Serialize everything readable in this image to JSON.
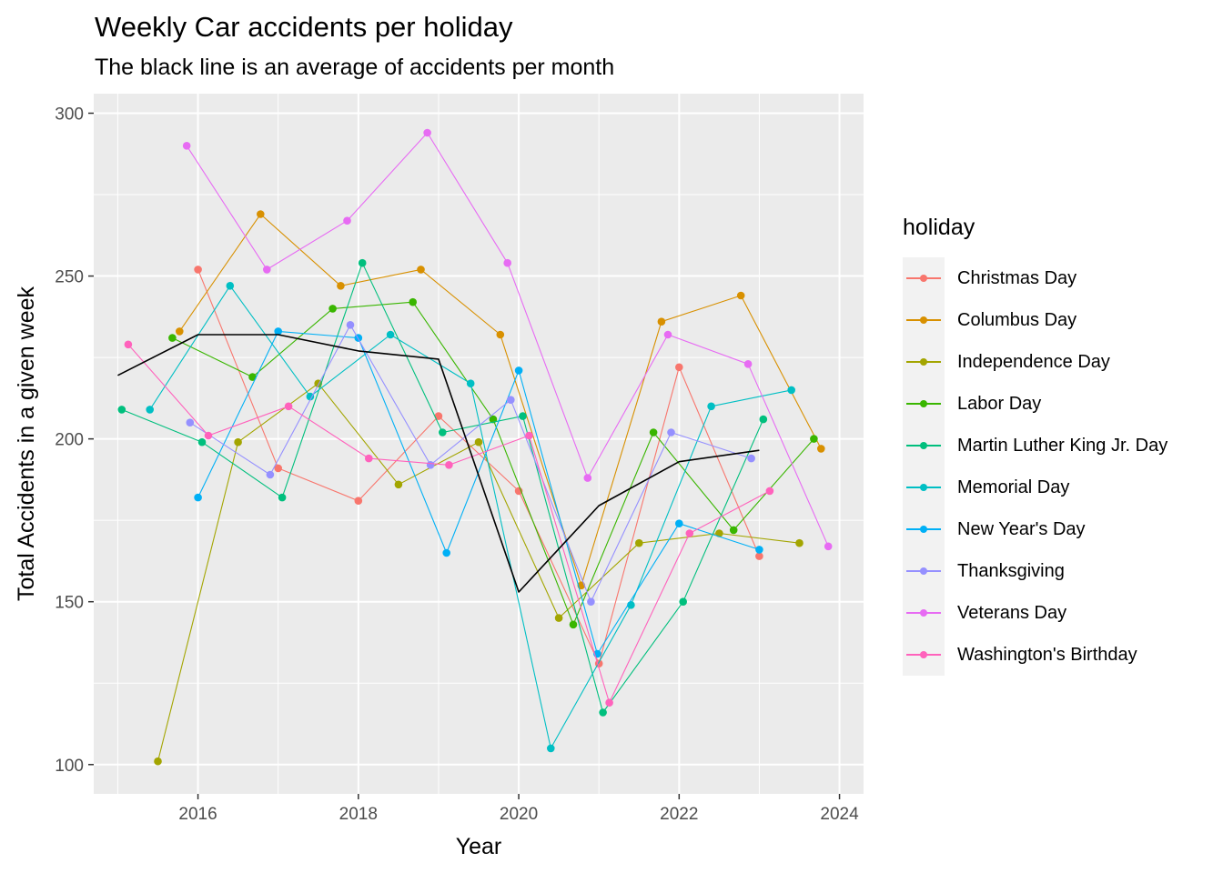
{
  "chart_data": {
    "type": "line",
    "title": "Weekly Car accidents per holiday",
    "subtitle": "The black line is an average of accidents per month",
    "xlabel": "Year",
    "ylabel": "Total Accidents in a given week",
    "xlim": [
      2014.7,
      2024.3
    ],
    "ylim": [
      91,
      306
    ],
    "xticks": [
      2016,
      2018,
      2020,
      2022,
      2024
    ],
    "yticks": [
      100,
      150,
      200,
      250,
      300
    ],
    "grid": true,
    "legend_title": "holiday",
    "legend_position": "right",
    "series": [
      {
        "name": "Christmas Day",
        "color": "#F8766D",
        "points": [
          [
            2016.0,
            252
          ],
          [
            2017.0,
            191
          ],
          [
            2018.0,
            181
          ],
          [
            2019.0,
            207
          ],
          [
            2020.0,
            184
          ],
          [
            2021.0,
            131
          ],
          [
            2022.0,
            222
          ],
          [
            2023.0,
            164
          ]
        ]
      },
      {
        "name": "Columbus Day",
        "color": "#D89000",
        "points": [
          [
            2015.77,
            233
          ],
          [
            2016.78,
            269
          ],
          [
            2017.78,
            247
          ],
          [
            2018.78,
            252
          ],
          [
            2019.77,
            232
          ],
          [
            2020.78,
            155
          ],
          [
            2021.78,
            236
          ],
          [
            2022.77,
            244
          ],
          [
            2023.77,
            197
          ]
        ]
      },
      {
        "name": "Independence Day",
        "color": "#A3A500",
        "points": [
          [
            2015.5,
            101
          ],
          [
            2016.5,
            199
          ],
          [
            2017.5,
            217
          ],
          [
            2018.5,
            186
          ],
          [
            2019.5,
            199
          ],
          [
            2020.5,
            145
          ],
          [
            2021.5,
            168
          ],
          [
            2022.5,
            171
          ],
          [
            2023.5,
            168
          ]
        ]
      },
      {
        "name": "Labor Day",
        "color": "#39B600",
        "points": [
          [
            2015.68,
            231
          ],
          [
            2016.68,
            219
          ],
          [
            2017.68,
            240
          ],
          [
            2018.68,
            242
          ],
          [
            2019.68,
            206
          ],
          [
            2020.68,
            143
          ],
          [
            2021.68,
            202
          ],
          [
            2022.68,
            172
          ],
          [
            2023.68,
            200
          ]
        ]
      },
      {
        "name": "Martin Luther King Jr. Day",
        "color": "#00BF7D",
        "points": [
          [
            2015.05,
            209
          ],
          [
            2016.05,
            199
          ],
          [
            2017.05,
            182
          ],
          [
            2018.05,
            254
          ],
          [
            2019.05,
            202
          ],
          [
            2020.05,
            207
          ],
          [
            2021.05,
            116
          ],
          [
            2022.05,
            150
          ],
          [
            2023.05,
            206
          ]
        ]
      },
      {
        "name": "Memorial Day",
        "color": "#00BFC4",
        "points": [
          [
            2015.4,
            209
          ],
          [
            2016.4,
            247
          ],
          [
            2017.4,
            213
          ],
          [
            2018.4,
            232
          ],
          [
            2019.4,
            217
          ],
          [
            2020.4,
            105
          ],
          [
            2021.4,
            149
          ],
          [
            2022.4,
            210
          ],
          [
            2023.4,
            215
          ]
        ]
      },
      {
        "name": "New Year's Day",
        "color": "#00B0F6",
        "points": [
          [
            2016.0,
            182
          ],
          [
            2017.0,
            233
          ],
          [
            2018.0,
            231
          ],
          [
            2019.1,
            165
          ],
          [
            2020.0,
            221
          ],
          [
            2020.98,
            134
          ],
          [
            2022.0,
            174
          ],
          [
            2023.0,
            166
          ]
        ]
      },
      {
        "name": "Thanksgiving",
        "color": "#9590FF",
        "points": [
          [
            2015.9,
            205
          ],
          [
            2016.9,
            189
          ],
          [
            2017.9,
            235
          ],
          [
            2018.9,
            192
          ],
          [
            2019.9,
            212
          ],
          [
            2020.9,
            150
          ],
          [
            2021.9,
            202
          ],
          [
            2022.9,
            194
          ]
        ]
      },
      {
        "name": "Veterans Day",
        "color": "#E76BF3",
        "points": [
          [
            2015.86,
            290
          ],
          [
            2016.86,
            252
          ],
          [
            2017.86,
            267
          ],
          [
            2018.86,
            294
          ],
          [
            2019.86,
            254
          ],
          [
            2020.86,
            188
          ],
          [
            2021.86,
            232
          ],
          [
            2022.86,
            223
          ],
          [
            2023.86,
            167
          ]
        ]
      },
      {
        "name": "Washington's Birthday",
        "color": "#FF62BC",
        "points": [
          [
            2015.13,
            229
          ],
          [
            2016.13,
            201
          ],
          [
            2017.13,
            210
          ],
          [
            2018.13,
            194
          ],
          [
            2019.13,
            192
          ],
          [
            2020.13,
            201
          ],
          [
            2021.13,
            119
          ],
          [
            2022.13,
            171
          ],
          [
            2023.13,
            184
          ]
        ]
      }
    ],
    "average_line": {
      "color": "#000000",
      "points": [
        [
          2015.0,
          219.5
        ],
        [
          2016.0,
          232
        ],
        [
          2017.0,
          232
        ],
        [
          2018.0,
          227
        ],
        [
          2019.0,
          224.5
        ],
        [
          2020.0,
          153
        ],
        [
          2021.0,
          179.5
        ],
        [
          2022.0,
          193
        ],
        [
          2023.0,
          196.5
        ]
      ]
    }
  }
}
